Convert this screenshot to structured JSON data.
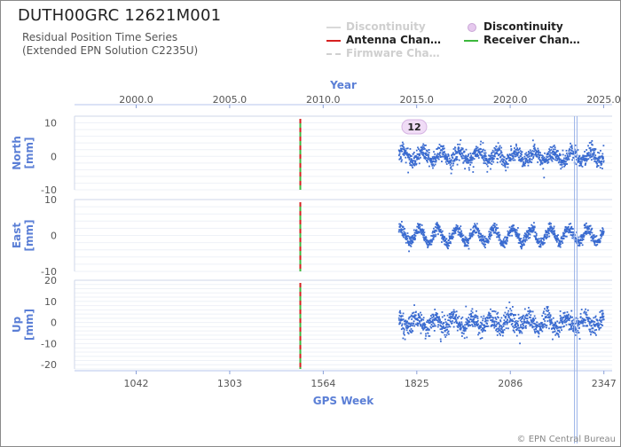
{
  "header": {
    "station": "DUTH00GRC 12621M001",
    "subtitle_line1": "Residual Position Time Series",
    "subtitle_line2": "(Extended EPN Solution C2235U)"
  },
  "legend": {
    "items": [
      {
        "label": "Discontinuity",
        "style": "line",
        "color": "#d9d9d9",
        "muted": true
      },
      {
        "label": "Discontinuity",
        "style": "dot",
        "color": "#e6c9ee",
        "muted": false
      },
      {
        "label": "Antenna Chan…",
        "style": "line",
        "color": "#d62020",
        "muted": false
      },
      {
        "label": "Receiver Chan…",
        "style": "line",
        "color": "#3cb83c",
        "muted": false
      },
      {
        "label": "Firmware Cha…",
        "style": "dashed",
        "color": "#d0d0d0",
        "muted": true
      }
    ]
  },
  "credit": "© EPN Central Bureau",
  "chart_data": {
    "type": "scatter",
    "top_axis": {
      "title": "Year",
      "ticks": [
        "2000.0",
        "2005.0",
        "2010.0",
        "2015.0",
        "2020.0",
        "2025.0"
      ],
      "tick_values": [
        2000.0,
        2005.0,
        2010.0,
        2015.0,
        2020.0,
        2025.0
      ]
    },
    "bottom_axis": {
      "title": "GPS Week",
      "ticks": [
        "1042",
        "1303",
        "1564",
        "1825",
        "2086",
        "2347"
      ],
      "tick_values": [
        1042,
        1303,
        1564,
        1825,
        2086,
        2347
      ],
      "range": [
        870,
        2370
      ]
    },
    "series_color": "#3a6bd0",
    "data_start_week": 1775,
    "data_end_week": 2347,
    "events": {
      "equipment_change_week": 1500,
      "discontinuity_weeks": [
        2265,
        2272
      ],
      "discontinuity_marker": {
        "week": 1818,
        "label": "12"
      }
    },
    "panels": [
      {
        "key": "north",
        "ylabel": "North\n[mm]",
        "ylim": [
          -10,
          12
        ],
        "yticks": [
          "10",
          "0",
          "-10"
        ],
        "ytick_values": [
          10,
          0,
          -10
        ],
        "noise_mm": 2.2,
        "seasonal_mm": 1.5
      },
      {
        "key": "east",
        "ylabel": "East\n[mm]",
        "ylim": [
          -10,
          10
        ],
        "yticks": [
          "10",
          "0",
          "-10"
        ],
        "ytick_values": [
          10,
          0,
          -10
        ],
        "noise_mm": 1.4,
        "seasonal_mm": 2.0
      },
      {
        "key": "up",
        "ylabel": "Up\n[mm]",
        "ylim": [
          -22,
          20
        ],
        "yticks": [
          "20",
          "10",
          "0",
          "-10",
          "-20"
        ],
        "ytick_values": [
          20,
          10,
          0,
          -10,
          -20
        ],
        "noise_mm": 4.2,
        "seasonal_mm": 2.5
      }
    ]
  }
}
